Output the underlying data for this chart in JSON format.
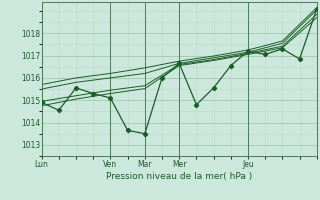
{
  "xlabel": "Pression niveau de la mer( hPa )",
  "bg_color": "#cce8dc",
  "plot_bg_color": "#cce8dc",
  "grid_color_major": "#a0c8b0",
  "grid_color_minor": "#b8d8c8",
  "line_color": "#1a5c28",
  "spine_color": "#4a7a5a",
  "ylim": [
    1012.6,
    1019.4
  ],
  "xlim": [
    0,
    112
  ],
  "yticks": [
    1013,
    1014,
    1015,
    1016,
    1017,
    1018
  ],
  "day_lines": [
    0,
    28,
    42,
    56,
    84,
    112
  ],
  "xtick_positions": [
    0,
    28,
    42,
    56,
    84,
    112
  ],
  "xtick_labels": [
    "Lun",
    "Ven",
    "Mar",
    "Mer",
    "Jeu",
    ""
  ],
  "main_line": [
    [
      0,
      1014.9
    ],
    [
      7,
      1014.55
    ],
    [
      14,
      1015.55
    ],
    [
      21,
      1015.3
    ],
    [
      28,
      1015.1
    ],
    [
      35,
      1013.65
    ],
    [
      42,
      1013.5
    ],
    [
      49,
      1016.0
    ],
    [
      56,
      1016.65
    ],
    [
      63,
      1014.8
    ],
    [
      70,
      1015.55
    ],
    [
      77,
      1016.55
    ],
    [
      84,
      1017.2
    ],
    [
      91,
      1017.05
    ],
    [
      98,
      1017.3
    ],
    [
      105,
      1016.85
    ],
    [
      112,
      1019.1
    ]
  ],
  "upper_band1": [
    [
      0,
      1015.5
    ],
    [
      14,
      1015.8
    ],
    [
      28,
      1016.0
    ],
    [
      42,
      1016.2
    ],
    [
      56,
      1016.65
    ],
    [
      70,
      1016.9
    ],
    [
      84,
      1017.15
    ],
    [
      98,
      1017.55
    ],
    [
      112,
      1019.05
    ]
  ],
  "upper_band2": [
    [
      0,
      1015.7
    ],
    [
      14,
      1016.0
    ],
    [
      28,
      1016.2
    ],
    [
      42,
      1016.45
    ],
    [
      56,
      1016.75
    ],
    [
      70,
      1016.98
    ],
    [
      84,
      1017.25
    ],
    [
      98,
      1017.65
    ],
    [
      112,
      1019.15
    ]
  ],
  "lower_band1": [
    [
      0,
      1014.95
    ],
    [
      14,
      1015.2
    ],
    [
      28,
      1015.45
    ],
    [
      42,
      1015.65
    ],
    [
      56,
      1016.6
    ],
    [
      70,
      1016.82
    ],
    [
      84,
      1017.1
    ],
    [
      98,
      1017.42
    ],
    [
      112,
      1018.85
    ]
  ],
  "lower_band2": [
    [
      0,
      1014.75
    ],
    [
      14,
      1015.05
    ],
    [
      28,
      1015.3
    ],
    [
      42,
      1015.52
    ],
    [
      56,
      1016.55
    ],
    [
      70,
      1016.78
    ],
    [
      84,
      1017.05
    ],
    [
      98,
      1017.35
    ],
    [
      112,
      1018.7
    ]
  ]
}
